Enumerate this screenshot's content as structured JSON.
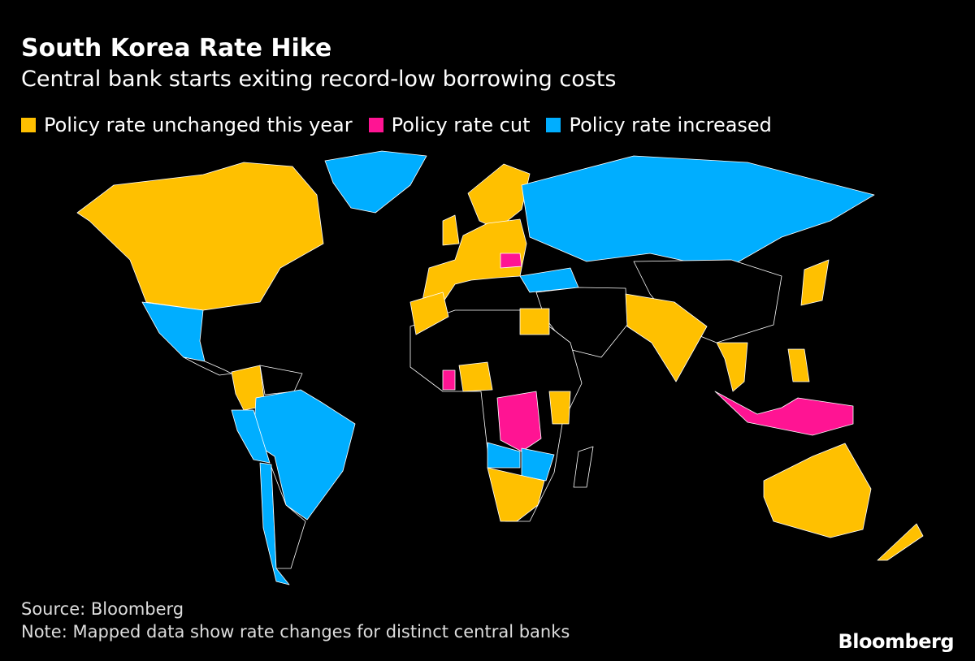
{
  "header": {
    "title": "South Korea Rate Hike",
    "subtitle": "Central bank starts exiting record-low borrowing costs"
  },
  "legend": [
    {
      "key": "unchanged",
      "label": "Policy rate unchanged this year",
      "color": "#FFC000"
    },
    {
      "key": "cut",
      "label": "Policy rate cut",
      "color": "#FF1493"
    },
    {
      "key": "increased",
      "label": "Policy rate increased",
      "color": "#00AEFF"
    }
  ],
  "no_data_color": "#000000",
  "map_regions": [
    {
      "region": "north-america-us-canada",
      "status": "unchanged"
    },
    {
      "region": "greenland",
      "status": "increased"
    },
    {
      "region": "mexico",
      "status": "increased"
    },
    {
      "region": "central-america",
      "status": "none"
    },
    {
      "region": "colombia",
      "status": "unchanged"
    },
    {
      "region": "venezuela",
      "status": "none"
    },
    {
      "region": "brazil",
      "status": "increased"
    },
    {
      "region": "peru",
      "status": "increased"
    },
    {
      "region": "chile",
      "status": "increased"
    },
    {
      "region": "argentina",
      "status": "none"
    },
    {
      "region": "scandinavia",
      "status": "unchanged"
    },
    {
      "region": "europe",
      "status": "unchanged"
    },
    {
      "region": "uk",
      "status": "unchanged"
    },
    {
      "region": "romania",
      "status": "cut"
    },
    {
      "region": "russia-central-asia",
      "status": "increased"
    },
    {
      "region": "turkey",
      "status": "increased"
    },
    {
      "region": "middle-east",
      "status": "none"
    },
    {
      "region": "china",
      "status": "none"
    },
    {
      "region": "japan",
      "status": "unchanged"
    },
    {
      "region": "india",
      "status": "unchanged"
    },
    {
      "region": "southeast-asia",
      "status": "unchanged"
    },
    {
      "region": "philippines",
      "status": "unchanged"
    },
    {
      "region": "indonesia",
      "status": "cut"
    },
    {
      "region": "north-africa",
      "status": "unchanged"
    },
    {
      "region": "africa",
      "status": "none"
    },
    {
      "region": "egypt",
      "status": "unchanged"
    },
    {
      "region": "nigeria",
      "status": "unchanged"
    },
    {
      "region": "ghana",
      "status": "cut"
    },
    {
      "region": "dr-congo",
      "status": "cut"
    },
    {
      "region": "kenya",
      "status": "unchanged"
    },
    {
      "region": "angola",
      "status": "increased"
    },
    {
      "region": "zambia-zimbabwe",
      "status": "increased"
    },
    {
      "region": "southern-africa",
      "status": "unchanged"
    },
    {
      "region": "madagascar",
      "status": "none"
    },
    {
      "region": "australia",
      "status": "unchanged"
    },
    {
      "region": "new-zealand",
      "status": "unchanged"
    }
  ],
  "footer": {
    "source": "Source: Bloomberg",
    "note": "Note: Mapped data show rate changes for distinct central banks",
    "logo": "Bloomberg"
  }
}
